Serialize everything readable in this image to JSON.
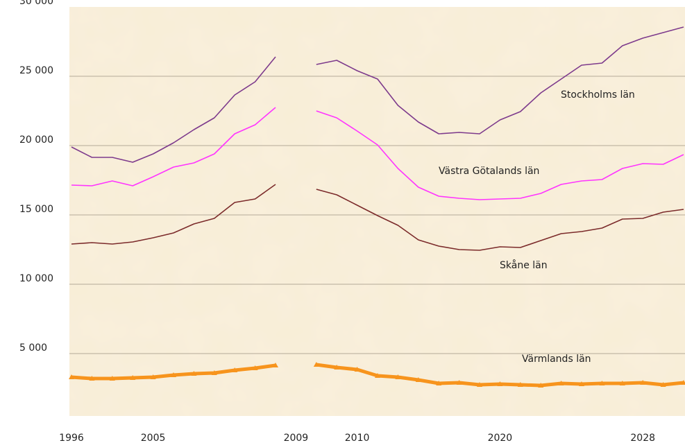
{
  "chart_data": {
    "type": "line",
    "categories": [
      "1996",
      null,
      null,
      null,
      "2005",
      null,
      null,
      null,
      null,
      null,
      null,
      "2009",
      null,
      null,
      "2010",
      null,
      null,
      null,
      null,
      null,
      null,
      "2020",
      null,
      null,
      null,
      null,
      null,
      null,
      "2028",
      null,
      null
    ],
    "ylim": [
      0,
      30000
    ],
    "yticks": [
      {
        "value": 5000,
        "label": "5 000"
      },
      {
        "value": 10000,
        "label": "10 000"
      },
      {
        "value": 15000,
        "label": "15 000"
      },
      {
        "value": 20000,
        "label": "20 000"
      },
      {
        "value": 25000,
        "label": "25 000"
      },
      {
        "value": 30000,
        "label": "30 000"
      }
    ],
    "grid": true,
    "series": [
      {
        "name": "Stockholms län",
        "color": "#7d3a8c",
        "line_width": 1.6,
        "values": [
          19900,
          19150,
          19150,
          18800,
          19400,
          20200,
          21150,
          22000,
          23650,
          24600,
          26400,
          null,
          25850,
          26150,
          25400,
          24800,
          22900,
          21700,
          20850,
          20950,
          20850,
          21850,
          22450,
          23800,
          24800,
          25800,
          25950,
          27200,
          27750,
          28150,
          28550
        ]
      },
      {
        "name": "Västra Götalands län",
        "color": "#ff33ff",
        "line_width": 1.6,
        "values": [
          17150,
          17100,
          17450,
          17100,
          17750,
          18450,
          18750,
          19400,
          20850,
          21500,
          22750,
          null,
          22500,
          22000,
          21050,
          20050,
          18350,
          17000,
          16350,
          16200,
          16100,
          16150,
          16200,
          16550,
          17200,
          17450,
          17550,
          18350,
          18700,
          18650,
          19350
        ]
      },
      {
        "name": "Skåne län",
        "color": "#7b2a2a",
        "line_width": 1.6,
        "values": [
          12900,
          13000,
          12900,
          13050,
          13350,
          13700,
          14350,
          14750,
          15900,
          16150,
          17200,
          null,
          16850,
          16450,
          15700,
          14950,
          14250,
          13200,
          12750,
          12500,
          12450,
          12700,
          12650,
          13150,
          13650,
          13800,
          14050,
          14700,
          14750,
          15200,
          15400
        ]
      },
      {
        "name": "Värmlands län",
        "color": "#f7941d",
        "line_width": 5,
        "marker": true,
        "values": [
          3300,
          3200,
          3200,
          3250,
          3300,
          3450,
          3550,
          3600,
          3800,
          3950,
          4150,
          null,
          4200,
          4000,
          3850,
          3400,
          3300,
          3100,
          2850,
          2900,
          2750,
          2800,
          2750,
          2700,
          2850,
          2800,
          2850,
          2850,
          2900,
          2750,
          2900
        ]
      }
    ]
  }
}
